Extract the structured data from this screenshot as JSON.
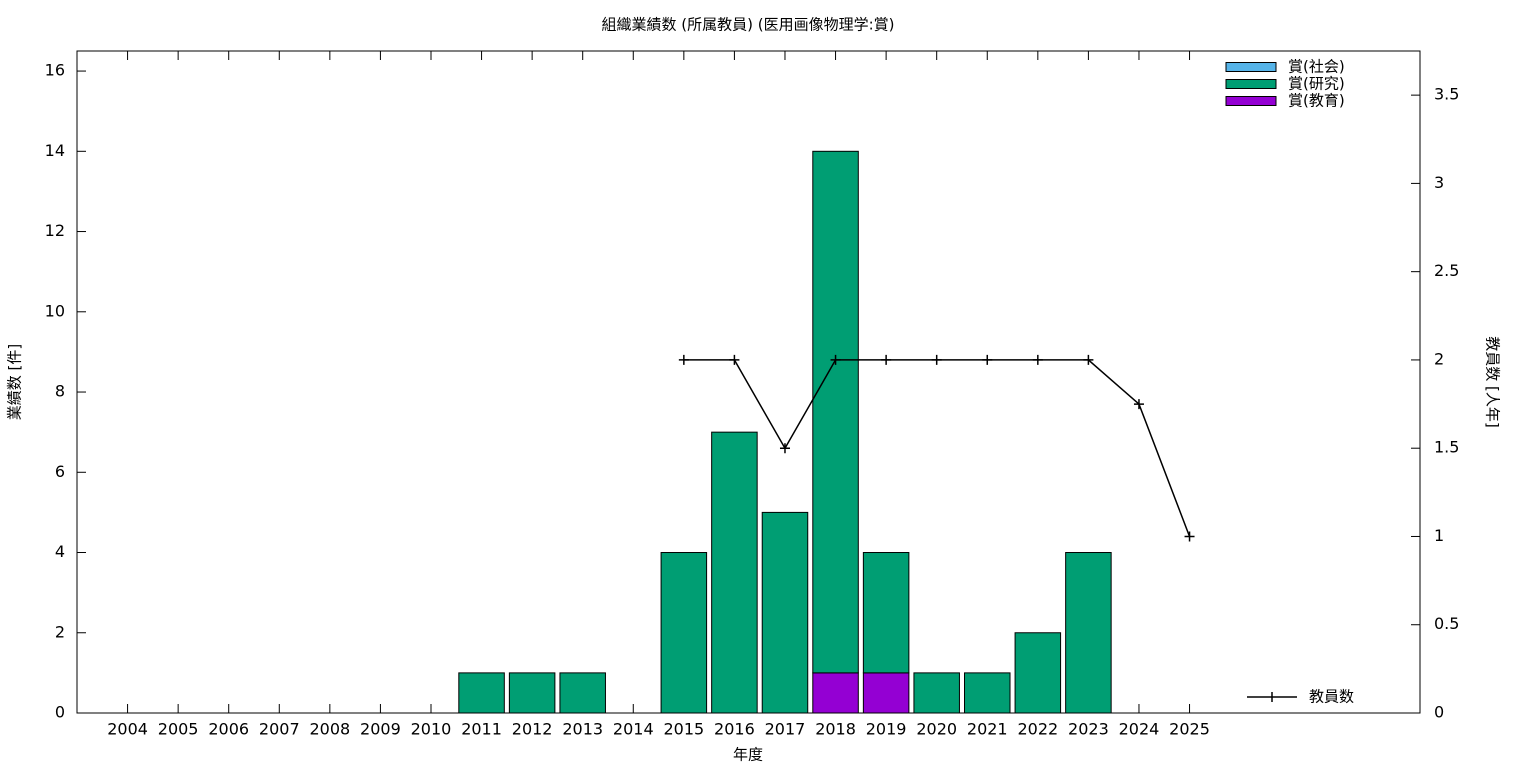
{
  "chart_data": {
    "type": "bar",
    "title": "組織業績数 (所属教員) (医用画像物理学:賞)",
    "xlabel": "年度",
    "ylabel": "業績数 [件]",
    "y2label": "教員数 [人年]",
    "categories": [
      "2004",
      "2005",
      "2006",
      "2007",
      "2008",
      "2009",
      "2010",
      "2011",
      "2012",
      "2013",
      "2014",
      "2015",
      "2016",
      "2017",
      "2018",
      "2019",
      "2020",
      "2021",
      "2022",
      "2023",
      "2024",
      "2025"
    ],
    "stacked": true,
    "series": [
      {
        "name": "賞(社会)",
        "color": "#56b4e9",
        "values": [
          0,
          0,
          0,
          0,
          0,
          0,
          0,
          0,
          0,
          0,
          0,
          0,
          0,
          0,
          0,
          0,
          0,
          0,
          0,
          0,
          0,
          0
        ]
      },
      {
        "name": "賞(研究)",
        "color": "#009e73",
        "values": [
          0,
          0,
          0,
          0,
          0,
          0,
          0,
          1,
          1,
          1,
          0,
          4,
          7,
          5,
          13,
          3,
          1,
          1,
          2,
          4,
          0,
          0
        ]
      },
      {
        "name": "賞(教育)",
        "color": "#9400d3",
        "values": [
          0,
          0,
          0,
          0,
          0,
          0,
          0,
          0,
          0,
          0,
          0,
          0,
          0,
          0,
          1,
          1,
          0,
          0,
          0,
          0,
          0,
          0
        ]
      },
      {
        "name": "教員数",
        "type": "line",
        "axis": "y2",
        "color": "#000000",
        "values": [
          null,
          null,
          null,
          null,
          null,
          null,
          null,
          null,
          null,
          null,
          null,
          2,
          2,
          1.5,
          2,
          2,
          2,
          2,
          2,
          2,
          1.75,
          1
        ]
      }
    ],
    "ylim": [
      0,
      16.5
    ],
    "yticks": [
      0,
      2,
      4,
      6,
      8,
      10,
      12,
      14,
      16
    ],
    "y2lim": [
      0,
      3.75
    ],
    "y2ticks": [
      0,
      0.5,
      1,
      1.5,
      2,
      2.5,
      3,
      3.5
    ]
  }
}
